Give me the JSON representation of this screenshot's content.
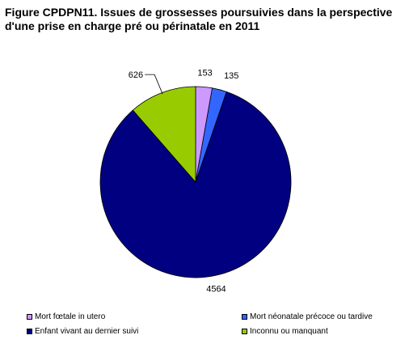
{
  "title_lines": [
    "Figure CPDPN11. Issues de grossesses poursuivies dans la perspective",
    "d'une prise en charge pré ou périnatale en 2011"
  ],
  "chart_data": {
    "type": "pie",
    "title": "Figure CPDPN11. Issues de grossesses poursuivies dans la perspective d'une prise en charge pré ou périnatale en 2011",
    "start_angle_deg": 0,
    "direction": "clockwise",
    "slices": [
      {
        "label": "Mort fœtale in utero",
        "value": 153,
        "color": "#CC99FF"
      },
      {
        "label": "Mort néonatale précoce ou tardive",
        "value": 135,
        "color": "#3366FF"
      },
      {
        "label": "Enfant vivant au dernier suivi",
        "value": 4564,
        "color": "#000080"
      },
      {
        "label": "Inconnu ou manquant",
        "value": 626,
        "color": "#99CC00"
      }
    ],
    "legend_position": "bottom"
  }
}
